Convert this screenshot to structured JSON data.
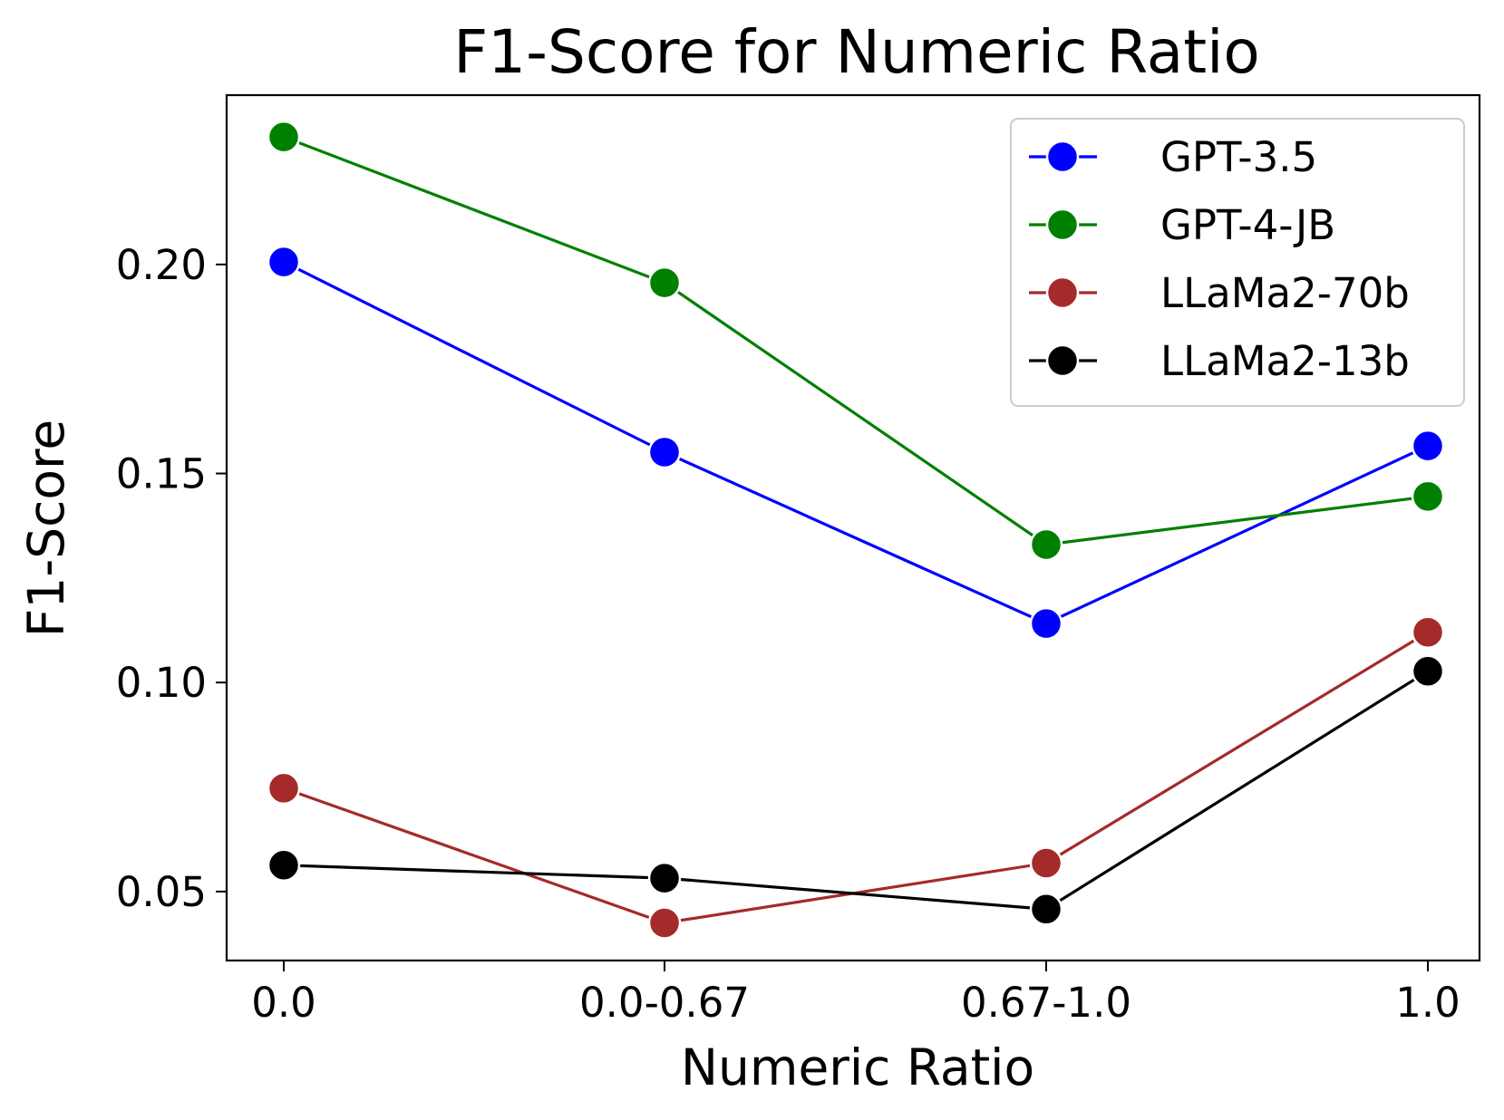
{
  "chart_data": {
    "type": "line",
    "title": "F1-Score for Numeric Ratio",
    "xlabel": "Numeric Ratio",
    "ylabel": "F1-Score",
    "categories": [
      "0.0",
      "0.0-0.67",
      "0.67-1.0",
      "1.0"
    ],
    "ylim": [
      0.0335,
      0.2405
    ],
    "yticks": [
      0.05,
      0.1,
      0.15,
      0.2
    ],
    "ytick_labels": [
      "0.05",
      "0.10",
      "0.15",
      "0.20"
    ],
    "grid": false,
    "legend_position": "top-right",
    "series": [
      {
        "name": "GPT-3.5",
        "color": "#0000ff",
        "values": [
          0.2006,
          0.1551,
          0.1141,
          0.1566
        ]
      },
      {
        "name": "GPT-4-JB",
        "color": "#008000",
        "values": [
          0.2305,
          0.1956,
          0.133,
          0.1445
        ]
      },
      {
        "name": "LLaMa2-70b",
        "color": "#a52a2a",
        "values": [
          0.0747,
          0.0425,
          0.0568,
          0.112
        ]
      },
      {
        "name": "LLaMa2-13b",
        "color": "#000000",
        "values": [
          0.0563,
          0.0532,
          0.0458,
          0.1027
        ]
      }
    ]
  }
}
